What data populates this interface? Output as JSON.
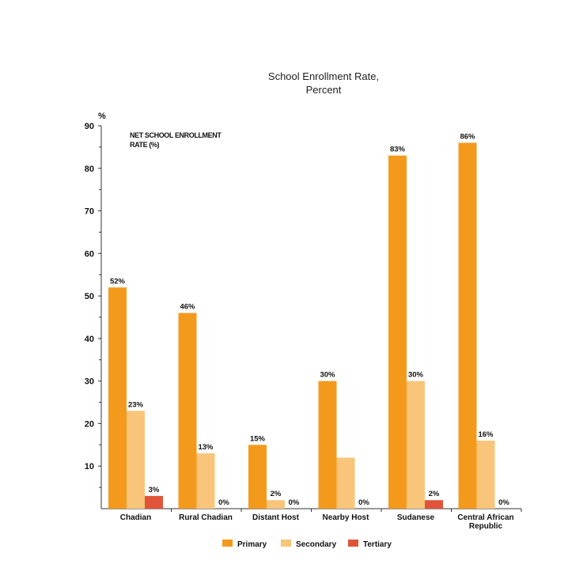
{
  "chart_data": {
    "type": "bar",
    "title_lines": [
      "School Enrollment Rate,",
      "Percent"
    ],
    "ylabel": "%",
    "annotation_lines": [
      "NET SCHOOL ENROLLMENT",
      "RATE (%)"
    ],
    "ylim": [
      0,
      90
    ],
    "yticks": [
      10,
      20,
      30,
      40,
      50,
      60,
      70,
      80,
      90
    ],
    "categories": [
      [
        "Chadian"
      ],
      [
        "Rural Chadian"
      ],
      [
        "Distant Host"
      ],
      [
        "Nearby Host"
      ],
      [
        "Sudanese"
      ],
      [
        "Central African",
        "Republic"
      ]
    ],
    "series": [
      {
        "name": "Primary",
        "color": "#F39A1D",
        "values": [
          52,
          46,
          15,
          30,
          83,
          86
        ],
        "labels": [
          "52%",
          "46%",
          "15%",
          "30%",
          "83%",
          "86%"
        ]
      },
      {
        "name": "Secondary",
        "color": "#F8C57A",
        "values": [
          23,
          13,
          2,
          12,
          30,
          16
        ],
        "labels": [
          "23%",
          "13%",
          "2%",
          "",
          "30%",
          "16%"
        ]
      },
      {
        "name": "Tertiary",
        "color": "#E0553A",
        "values": [
          3,
          0,
          0,
          0,
          2,
          0
        ],
        "labels": [
          "3%",
          "0%",
          "0%",
          "0%",
          "2%",
          "0%"
        ]
      }
    ],
    "legend_position": "bottom",
    "grid": false
  }
}
